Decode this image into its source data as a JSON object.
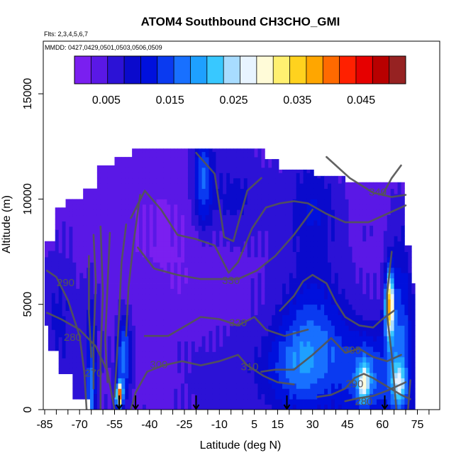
{
  "chart_data": {
    "type": "heatmap",
    "title": "ATOM4 Southbound CH3CHO_GMI",
    "subtitle_flights": "Flts: 2,3,4,5,6,7",
    "subtitle_dates": "MMDD: 0427,0429,0501,0503,0506,0509",
    "xlabel": "Latitude (deg N)",
    "ylabel": "Altitude (m)",
    "xlim": [
      -85,
      85
    ],
    "ylim": [
      0,
      17500
    ],
    "x_ticks": [
      -85,
      -70,
      -55,
      -40,
      -25,
      -10,
      5,
      15,
      30,
      45,
      60,
      75
    ],
    "y_ticks": [
      0,
      5000,
      10000,
      15000
    ],
    "grid": false,
    "colorbar": {
      "orientation": "horizontal",
      "placement": "top-inside",
      "range": [
        0,
        0.052
      ],
      "tick_values": [
        0.005,
        0.015,
        0.025,
        0.035,
        0.045
      ],
      "tick_labels": [
        "0.005",
        "0.015",
        "0.025",
        "0.035",
        "0.045"
      ],
      "colors": [
        "#7a1ff0",
        "#5a18e6",
        "#2c12d6",
        "#0a0acc",
        "#0010dd",
        "#0a3af0",
        "#1870ff",
        "#1ea0ff",
        "#38c8ff",
        "#a8dcff",
        "#e8f4ff",
        "#fffbd8",
        "#fff070",
        "#ffd21e",
        "#ffa600",
        "#ff6a00",
        "#ff2000",
        "#e60000",
        "#b80000",
        "#962222"
      ]
    },
    "contours": [
      {
        "label": "270",
        "lat": -64,
        "alt": 1700
      },
      {
        "label": "280",
        "lat": -73,
        "alt": 3400
      },
      {
        "label": "280",
        "lat": 52,
        "alt": 350
      },
      {
        "label": "290",
        "lat": -76,
        "alt": 6000
      },
      {
        "label": "290",
        "lat": 48,
        "alt": 1200
      },
      {
        "label": "300",
        "lat": -36,
        "alt": 2100
      },
      {
        "label": "300",
        "lat": 47,
        "alt": 2800
      },
      {
        "label": "310",
        "lat": 3,
        "alt": 2000
      },
      {
        "label": "320",
        "lat": -2,
        "alt": 4100
      },
      {
        "label": "330",
        "lat": -5,
        "alt": 6100
      },
      {
        "label": "340",
        "lat": 58,
        "alt": 10300
      }
    ],
    "flight_markers_lat": [
      -53,
      -46,
      -20,
      19,
      61
    ]
  }
}
